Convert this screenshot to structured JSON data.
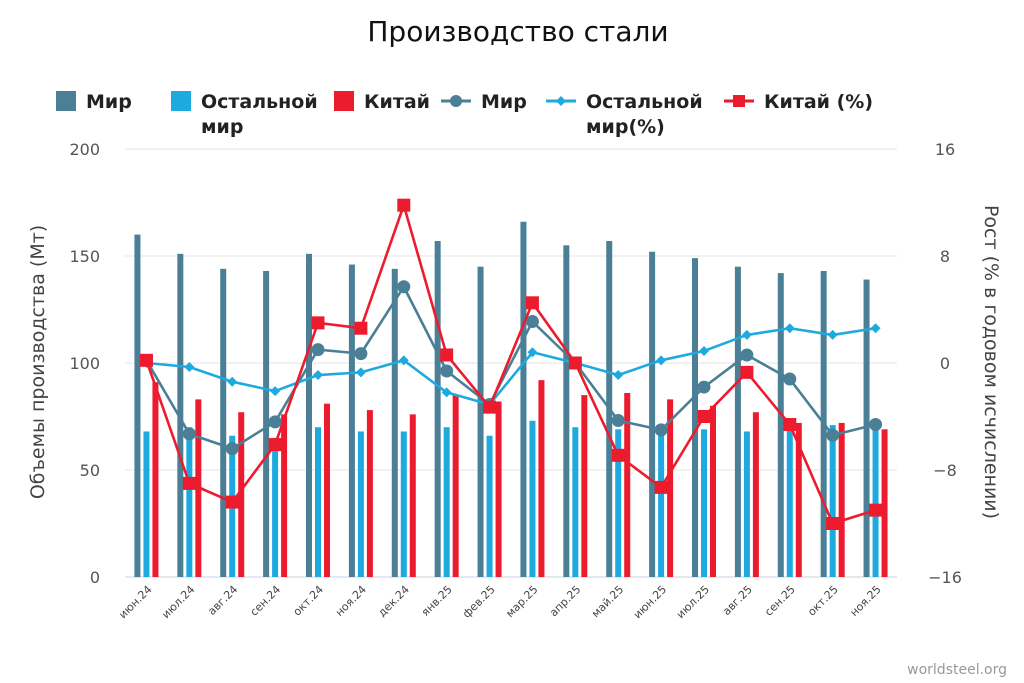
{
  "chart_data": {
    "type": "bar",
    "title": "Производство стали",
    "ylabel": "Объемы производства (Мт)",
    "y2label": "Рост (% в годовом исчислении)",
    "ylim": [
      0,
      200
    ],
    "yticks": [
      0,
      50,
      100,
      150,
      200
    ],
    "y2lim": [
      -16,
      16
    ],
    "y2ticks": [
      -16,
      -8,
      0,
      8,
      16
    ],
    "y2tick_labels": [
      "−16",
      "−8",
      "0",
      "8",
      "16"
    ],
    "categories": [
      "июн.24",
      "июл.24",
      "авг.24",
      "сен.24",
      "окт.24",
      "ноя.24",
      "дек.24",
      "янв.25",
      "фев.25",
      "мар.25",
      "апр.25",
      "май.25",
      "июн.25",
      "июл.25",
      "авг.25",
      "сен.25",
      "окт.25",
      "ноя.25"
    ],
    "bar_series": [
      {
        "name": "Мир",
        "color": "#4a7f96",
        "values": [
          160,
          151,
          144,
          143,
          151,
          146,
          144,
          157,
          145,
          166,
          155,
          157,
          152,
          149,
          145,
          142,
          143,
          139
        ]
      },
      {
        "name": "Остальной мир",
        "color": "#1eaadf",
        "values": [
          68,
          70,
          66,
          65,
          70,
          68,
          68,
          70,
          66,
          73,
          70,
          69,
          70,
          69,
          68,
          70,
          71,
          70
        ]
      },
      {
        "name": "Китай",
        "color": "#ed1b2e",
        "values": [
          91,
          83,
          77,
          76,
          81,
          78,
          76,
          85,
          82,
          92,
          85,
          86,
          83,
          80,
          77,
          72,
          72,
          69
        ]
      }
    ],
    "line_series": [
      {
        "name": "Мир",
        "color": "#4a7f96",
        "marker": "circle",
        "values": [
          0.2,
          -5.3,
          -6.4,
          -4.4,
          1.0,
          0.7,
          5.7,
          -0.6,
          -3.1,
          3.1,
          0.0,
          -4.3,
          -5.0,
          -1.8,
          0.6,
          -1.2,
          -5.4,
          -4.6
        ]
      },
      {
        "name": "Остальной мир(%)",
        "color": "#1eaadf",
        "marker": "diamond",
        "values": [
          0.0,
          -0.3,
          -1.4,
          -2.1,
          -0.9,
          -0.7,
          0.2,
          -2.2,
          -3.1,
          0.8,
          0.0,
          -0.9,
          0.2,
          0.9,
          2.1,
          2.6,
          2.1,
          2.6
        ]
      },
      {
        "name": "Китай (%)",
        "color": "#ed1b2e",
        "marker": "square",
        "values": [
          0.2,
          -9.0,
          -10.4,
          -6.1,
          3.0,
          2.6,
          11.8,
          0.6,
          -3.3,
          4.5,
          0.0,
          -6.9,
          -9.3,
          -4.0,
          -0.7,
          -4.6,
          -12.0,
          -11.0
        ]
      }
    ],
    "legend": [
      {
        "label": "Мир",
        "kind": "bar",
        "color": "#4a7f96"
      },
      {
        "label": "Остальной",
        "label2": "мир",
        "kind": "bar",
        "color": "#1eaadf"
      },
      {
        "label": "Китай",
        "kind": "bar",
        "color": "#ed1b2e"
      },
      {
        "label": "Мир",
        "kind": "line-circle",
        "color": "#4a7f96"
      },
      {
        "label": "Остальной",
        "label2": "мир(%)",
        "kind": "line-diamond",
        "color": "#1eaadf"
      },
      {
        "label": "Китай (%)",
        "kind": "line-square",
        "color": "#ed1b2e"
      }
    ],
    "source": "worldsteel.org"
  }
}
